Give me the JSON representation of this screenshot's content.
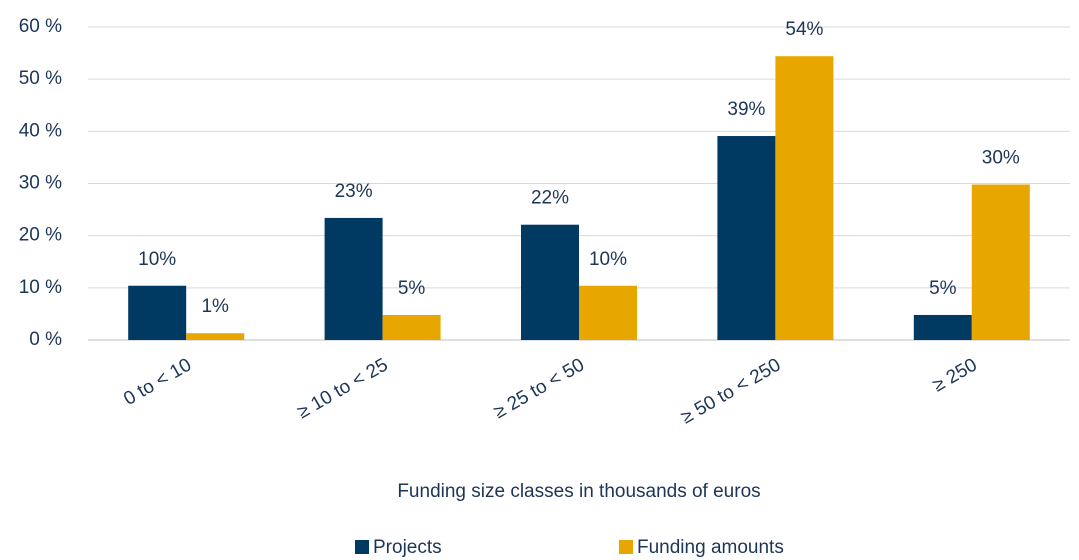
{
  "chart_data": {
    "type": "bar",
    "categories": [
      "0 to < 10",
      "≥ 10 to < 25",
      "≥ 25 to < 50",
      "≥ 50 to < 250",
      "≥  250"
    ],
    "series": [
      {
        "name": "Projects",
        "color": "#003a63",
        "values": [
          10.4,
          23.4,
          22.1,
          39.1,
          4.8
        ],
        "value_labels": [
          "10%",
          "23%",
          "22%",
          "39%",
          "5%"
        ]
      },
      {
        "name": "Funding amounts",
        "color": "#e8a600",
        "values": [
          1.3,
          4.8,
          10.4,
          54.4,
          29.8
        ],
        "value_labels": [
          "1%",
          "5%",
          "10%",
          "54%",
          "30%"
        ]
      }
    ],
    "x_label": "Funding size classes in thousands of euros",
    "ylim": [
      0,
      60
    ],
    "yticks": [
      {
        "value": 0,
        "label": "0 %"
      },
      {
        "value": 10,
        "label": "10 %"
      },
      {
        "value": 20,
        "label": "20 %"
      },
      {
        "value": 30,
        "label": "30 %"
      },
      {
        "value": 40,
        "label": "40 %"
      },
      {
        "value": 50,
        "label": "50 %"
      },
      {
        "value": 60,
        "label": "60 %"
      }
    ],
    "grid": true
  }
}
